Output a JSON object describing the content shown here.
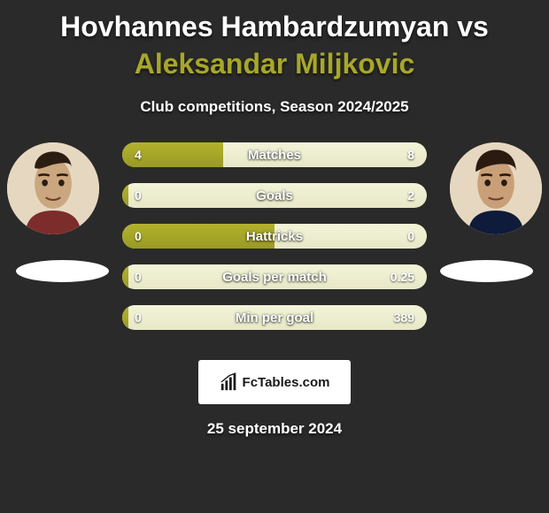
{
  "title": {
    "player1_name": "Hovhannes Hambardzumyan",
    "vs_word": "vs",
    "player2_name": "Aleksandar Miljkovic",
    "player1_color": "#ffffff",
    "player2_color": "#a7a72a"
  },
  "subtitle": "Club competitions, Season 2024/2025",
  "colors": {
    "background": "#2a2a2a",
    "bar_fill": "#a7a72a",
    "bar_track": "#ecebca",
    "text": "#ffffff"
  },
  "stats": [
    {
      "label": "Matches",
      "left_value": "4",
      "right_value": "8",
      "fill_pct": 33
    },
    {
      "label": "Goals",
      "left_value": "0",
      "right_value": "2",
      "fill_pct": 2
    },
    {
      "label": "Hattricks",
      "left_value": "0",
      "right_value": "0",
      "fill_pct": 50
    },
    {
      "label": "Goals per match",
      "left_value": "0",
      "right_value": "0.25",
      "fill_pct": 2
    },
    {
      "label": "Min per goal",
      "left_value": "0",
      "right_value": "389",
      "fill_pct": 2
    }
  ],
  "logo_text": "FcTables.com",
  "footer_date": "25 september 2024"
}
